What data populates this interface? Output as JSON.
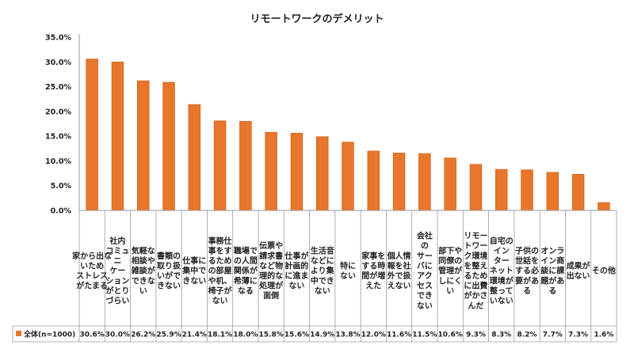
{
  "chart_data": {
    "type": "bar",
    "title": "リモートワークのデメリット",
    "series": [
      {
        "name": "全体(n=1000)",
        "values": [
          30.6,
          30.0,
          26.2,
          25.9,
          21.4,
          18.1,
          18.0,
          15.8,
          15.6,
          14.9,
          13.8,
          12.0,
          11.6,
          11.5,
          10.6,
          9.3,
          8.3,
          8.2,
          7.7,
          7.3,
          1.6
        ]
      }
    ],
    "categories": [
      "家から出ないためストレスがたまる",
      "社内コミュニケーションがとりづらい",
      "気軽な相談や雑談ができない",
      "書類の取り扱いができない",
      "仕事に集中できない",
      "事務仕事をするための部屋や机、椅子がない",
      "職場での人間関係が希薄になる",
      "伝票や請求書など物理的な処理が面倒",
      "仕事が計画的に進まない",
      "生活音などにより集中できない",
      "特にない",
      "家事をする時間が増えた",
      "個人情報を社外で扱えない",
      "会社のサーバにアクセスできない",
      "部下や同僚の管理がしにくい",
      "リモートワーク環境を整えるために出費がかさんだ",
      "自宅のインターネット環境が整っていない",
      "子供の世話をする必要がある",
      "オンライン商談に課題がある",
      "成果が出ない",
      "その他"
    ],
    "category_lines": [
      [
        "家から出な",
        "いため",
        "ストレス",
        "がたまる"
      ],
      [
        "社内",
        "コミュ",
        "ニ",
        "ケー",
        "ション",
        "がとり",
        "づらい"
      ],
      [
        "気軽な",
        "相談や",
        "雑談が",
        "できな",
        "い"
      ],
      [
        "書類の",
        "取り扱",
        "いがで",
        "きない"
      ],
      [
        "仕事に",
        "集中で",
        "きない"
      ],
      [
        "事務仕",
        "事をす",
        "るため",
        "の部屋",
        "や机、",
        "椅子が",
        "ない"
      ],
      [
        "職場で",
        "の人間",
        "関係が",
        "希薄に",
        "なる"
      ],
      [
        "伝票や",
        "請求書",
        "など物",
        "理的な",
        "処理が",
        "面倒"
      ],
      [
        "仕事が",
        "計画的",
        "に進ま",
        "ない"
      ],
      [
        "生活音",
        "などに",
        "より集",
        "中でき",
        "ない"
      ],
      [
        "特に",
        "ない"
      ],
      [
        "家事を",
        "する時",
        "間が増",
        "えた"
      ],
      [
        "個人情",
        "報を社",
        "外で扱",
        "えない"
      ],
      [
        "会社",
        "の",
        "サー",
        "バに",
        "アク",
        "セス",
        "でき",
        "ない"
      ],
      [
        "部下や",
        "同僚の",
        "管理が",
        "しにく",
        "い"
      ],
      [
        "リモー",
        "トワー",
        "ク環境",
        "を整え",
        "るため",
        "に出費",
        "がかさ",
        "んだ"
      ],
      [
        "自宅の",
        "イン",
        "ター",
        "ネット",
        "環境が",
        "整って",
        "いない"
      ],
      [
        "子供の",
        "世話を",
        "する必",
        "要があ",
        "る"
      ],
      [
        "オンラ",
        "イン商",
        "談に課",
        "題があ",
        "る"
      ],
      [
        "成果が",
        "出ない"
      ],
      [
        "その他"
      ]
    ],
    "value_labels": [
      "30.6%",
      "30.0%",
      "26.2%",
      "25.9%",
      "21.4%",
      "18.1%",
      "18.0%",
      "15.8%",
      "15.6%",
      "14.9%",
      "13.8%",
      "12.0%",
      "11.6%",
      "11.5%",
      "10.6%",
      "9.3%",
      "8.3%",
      "8.2%",
      "7.7%",
      "7.3%",
      "1.6%"
    ],
    "yticks": [
      "0.0%",
      "5.0%",
      "10.0%",
      "15.0%",
      "20.0%",
      "25.0%",
      "30.0%",
      "35.0%"
    ],
    "ylim": [
      0,
      35
    ],
    "grid": false,
    "legend": "bottom-left table",
    "bar_color": "#E8762B"
  }
}
